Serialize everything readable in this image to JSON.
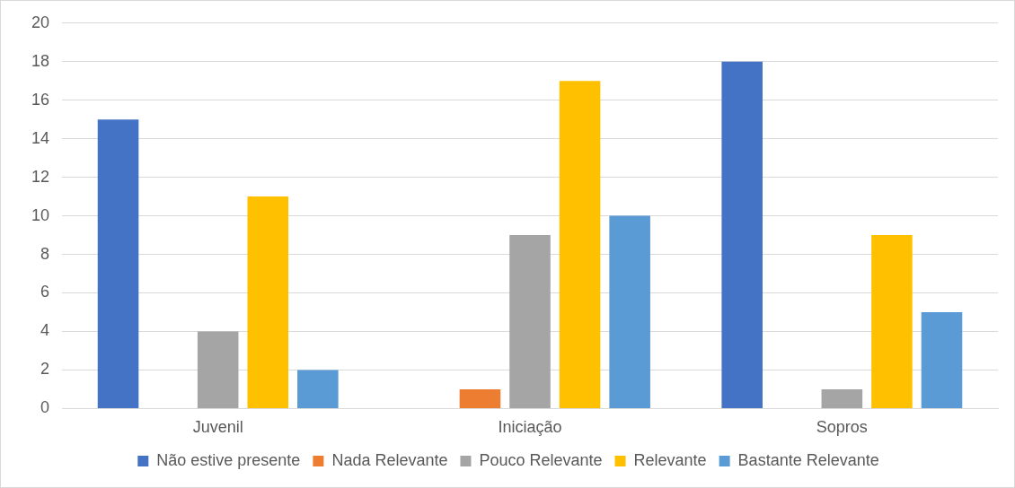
{
  "chart_data": {
    "type": "bar",
    "categories": [
      "Juvenil",
      "Iniciação",
      "Sopros"
    ],
    "series": [
      {
        "name": "Não estive presente",
        "color": "#4472c4",
        "values": [
          15,
          0,
          18
        ]
      },
      {
        "name": "Nada Relevante",
        "color": "#ed7d31",
        "values": [
          0,
          1,
          0
        ]
      },
      {
        "name": "Pouco Relevante",
        "color": "#a5a5a5",
        "values": [
          4,
          9,
          1
        ]
      },
      {
        "name": "Relevante",
        "color": "#ffc000",
        "values": [
          11,
          17,
          9
        ]
      },
      {
        "name": "Bastante Relevante",
        "color": "#5b9bd5",
        "values": [
          2,
          10,
          5
        ]
      }
    ],
    "ylim": [
      0,
      20
    ],
    "yticks": [
      0,
      2,
      4,
      6,
      8,
      10,
      12,
      14,
      16,
      18,
      20
    ],
    "grid": "y",
    "legend": "bottom"
  }
}
